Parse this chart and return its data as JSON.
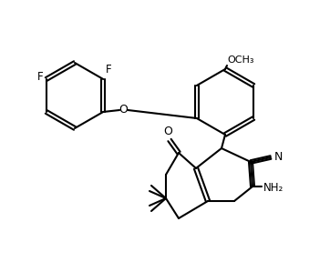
{
  "background_color": "#ffffff",
  "line_color": "#000000",
  "line_width": 1.5,
  "figsize": [
    3.62,
    2.88
  ],
  "dpi": 100,
  "labels": {
    "F1": "F",
    "F2": "F",
    "OCH3": "OCH₃",
    "O_ether": "O",
    "O_ketone": "O",
    "CN_N": "N",
    "NH2": "NH₂"
  }
}
